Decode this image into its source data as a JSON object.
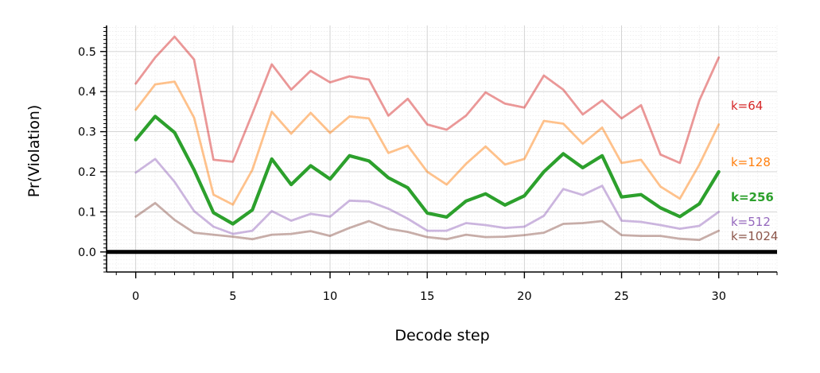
{
  "chart_data": {
    "type": "line",
    "xlabel": "Decode step",
    "ylabel": "Pr(Violation)",
    "xlim": [
      -1.5,
      33
    ],
    "ylim": [
      -0.05,
      0.565
    ],
    "xticks": [
      0,
      5,
      10,
      15,
      20,
      25,
      30
    ],
    "xtick_labels": [
      "0",
      "5",
      "10",
      "15",
      "20",
      "25",
      "30"
    ],
    "yticks": [
      0.0,
      0.1,
      0.2,
      0.3,
      0.4,
      0.5
    ],
    "ytick_labels": [
      "0.0",
      "0.1",
      "0.2",
      "0.3",
      "0.4",
      "0.5"
    ],
    "grid": true,
    "baseline": 0.0,
    "x": [
      0,
      1,
      2,
      3,
      4,
      5,
      6,
      7,
      8,
      9,
      10,
      11,
      12,
      13,
      14,
      15,
      16,
      17,
      18,
      19,
      20,
      21,
      22,
      23,
      24,
      25,
      26,
      27,
      28,
      29,
      30
    ],
    "series": [
      {
        "name": "k=64",
        "color": "#d62728",
        "highlight": false,
        "values": [
          0.42,
          0.485,
          0.537,
          0.48,
          0.23,
          0.225,
          0.345,
          0.468,
          0.405,
          0.452,
          0.423,
          0.438,
          0.43,
          0.34,
          0.382,
          0.318,
          0.305,
          0.34,
          0.398,
          0.37,
          0.36,
          0.44,
          0.405,
          0.343,
          0.378,
          0.333,
          0.366,
          0.243,
          0.222,
          0.378,
          0.485
        ]
      },
      {
        "name": "k=128",
        "color": "#ff7f0e",
        "highlight": false,
        "values": [
          0.355,
          0.418,
          0.425,
          0.335,
          0.143,
          0.118,
          0.205,
          0.35,
          0.295,
          0.347,
          0.297,
          0.338,
          0.333,
          0.247,
          0.265,
          0.2,
          0.168,
          0.22,
          0.263,
          0.218,
          0.232,
          0.327,
          0.32,
          0.27,
          0.31,
          0.222,
          0.23,
          0.163,
          0.133,
          0.218,
          0.318
        ]
      },
      {
        "name": "k=256",
        "color": "#2ca02c",
        "highlight": true,
        "values": [
          0.28,
          0.338,
          0.298,
          0.205,
          0.098,
          0.07,
          0.105,
          0.232,
          0.168,
          0.215,
          0.182,
          0.24,
          0.227,
          0.185,
          0.16,
          0.097,
          0.087,
          0.127,
          0.145,
          0.117,
          0.14,
          0.2,
          0.245,
          0.21,
          0.24,
          0.137,
          0.143,
          0.11,
          0.088,
          0.12,
          0.2
        ]
      },
      {
        "name": "k=512",
        "color": "#9467bd",
        "highlight": false,
        "values": [
          0.198,
          0.232,
          0.175,
          0.102,
          0.063,
          0.045,
          0.053,
          0.102,
          0.078,
          0.095,
          0.088,
          0.128,
          0.126,
          0.108,
          0.083,
          0.053,
          0.053,
          0.072,
          0.067,
          0.06,
          0.063,
          0.09,
          0.157,
          0.142,
          0.165,
          0.078,
          0.075,
          0.067,
          0.058,
          0.065,
          0.1
        ]
      },
      {
        "name": "k=1024",
        "color": "#8c564b",
        "highlight": false,
        "values": [
          0.088,
          0.122,
          0.08,
          0.048,
          0.043,
          0.038,
          0.032,
          0.043,
          0.045,
          0.052,
          0.04,
          0.06,
          0.077,
          0.058,
          0.05,
          0.037,
          0.032,
          0.043,
          0.037,
          0.038,
          0.042,
          0.048,
          0.07,
          0.072,
          0.077,
          0.042,
          0.04,
          0.04,
          0.033,
          0.03,
          0.053
        ]
      }
    ]
  }
}
